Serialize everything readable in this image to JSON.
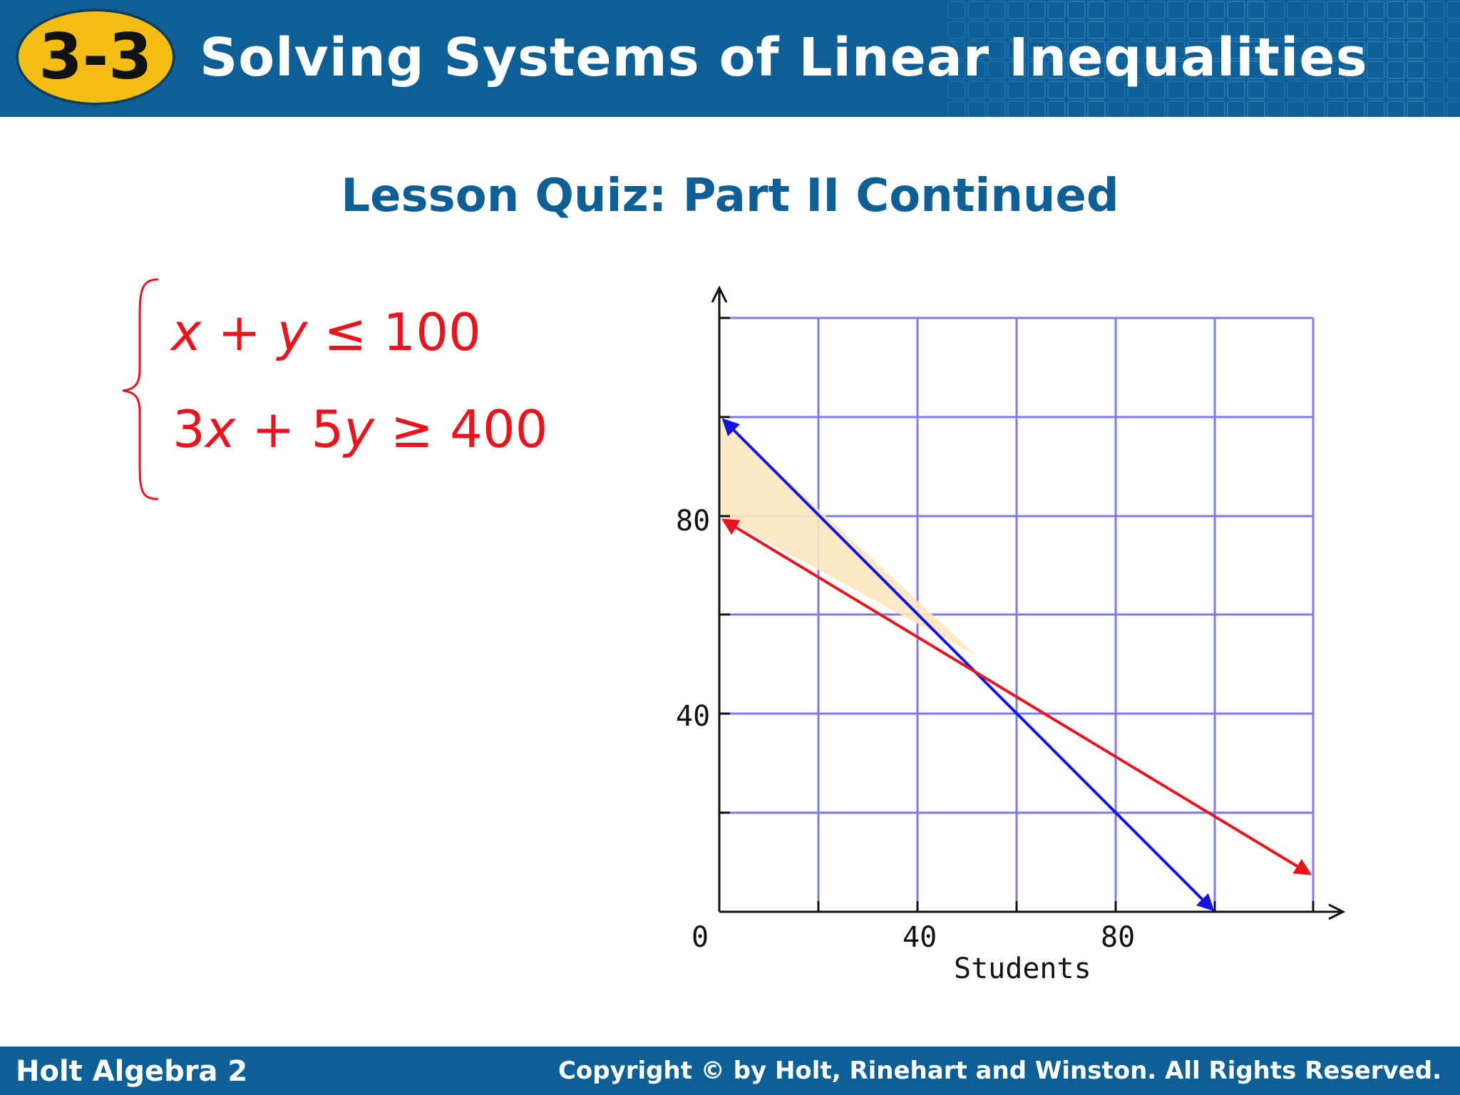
{
  "header": {
    "badge": "3-3",
    "title": "Solving Systems of Linear Inequalities"
  },
  "page_title": "Lesson Quiz: Part II Continued",
  "system": {
    "ineq1": {
      "a": "x",
      "op1": " + ",
      "b": "y",
      "rest": " ≤ 100"
    },
    "ineq2": {
      "coef_a": "3",
      "a": "x",
      "op1": " + 5",
      "b": "y",
      "rest": " ≥ 400"
    }
  },
  "graph": {
    "x_ticks": [
      "0",
      "40",
      "80"
    ],
    "y_ticks": [
      "80",
      "40"
    ],
    "xlabel": "Students",
    "colors": {
      "grid": "#7b7bea",
      "line1": "#1414e0",
      "line2": "#e8141e",
      "region": "#ffe5bf",
      "axis": "#111111"
    }
  },
  "footer": {
    "left": "Holt Algebra 2",
    "right": "Copyright © by Holt, Rinehart and Winston. All Rights Reserved."
  }
}
